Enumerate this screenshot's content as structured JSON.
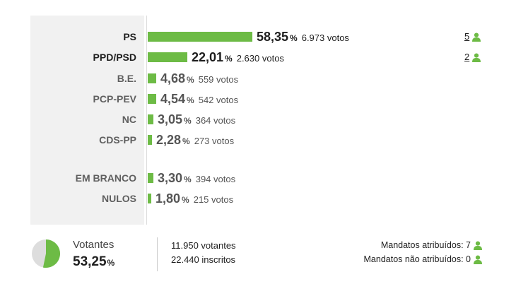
{
  "colors": {
    "bar": "#6dbb45",
    "pie_fill": "#6dbb45",
    "pie_rest": "#dddddd",
    "icon": "#6dbb45"
  },
  "parties": [
    {
      "name": "PS",
      "pct": "58,35",
      "pct_sign": "%",
      "votes": "6.973 votos",
      "share": 0.5835,
      "mandates": "5"
    },
    {
      "name": "PPD/PSD",
      "pct": "22,01",
      "pct_sign": "%",
      "votes": "2.630 votos",
      "share": 0.2201,
      "mandates": "2"
    },
    {
      "name": "B.E.",
      "pct": "4,68",
      "pct_sign": "%",
      "votes": "559 votos",
      "share": 0.0468
    },
    {
      "name": "PCP-PEV",
      "pct": "4,54",
      "pct_sign": "%",
      "votes": "542 votos",
      "share": 0.0454
    },
    {
      "name": "NC",
      "pct": "3,05",
      "pct_sign": "%",
      "votes": "364 votos",
      "share": 0.0305
    },
    {
      "name": "CDS-PP",
      "pct": "2,28",
      "pct_sign": "%",
      "votes": "273 votos",
      "share": 0.0228
    }
  ],
  "others": [
    {
      "name": "EM BRANCO",
      "pct": "3,30",
      "pct_sign": "%",
      "votes": "394 votos",
      "share": 0.033
    },
    {
      "name": "NULOS",
      "pct": "1,80",
      "pct_sign": "%",
      "votes": "215 votos",
      "share": 0.018
    }
  ],
  "summary": {
    "label": "Votantes",
    "pct": "53,25",
    "pct_sign": "%",
    "turnout": 0.5325,
    "voters": "11.950 votantes",
    "registered": "22.440 inscritos",
    "assigned": "Mandatos atribuídos: 7",
    "unassigned": "Mandatos não atribuídos: 0"
  }
}
